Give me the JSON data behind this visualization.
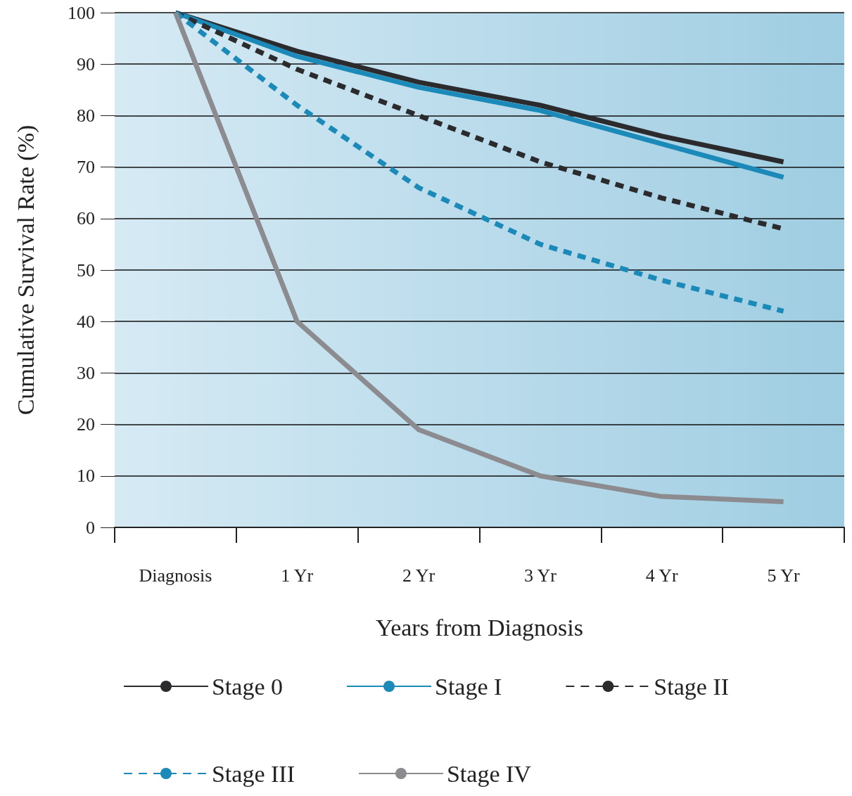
{
  "chart_data": {
    "type": "line",
    "xlabel": "Years from Diagnosis",
    "ylabel": "Cumulative Survival Rate (%)",
    "categories": [
      "Diagnosis",
      "1 Yr",
      "2 Yr",
      "3 Yr",
      "4 Yr",
      "5 Yr"
    ],
    "series": [
      {
        "name": "Stage 0",
        "color": "#2b2b2e",
        "line_style": "solid",
        "values": [
          100,
          92.5,
          86.5,
          82,
          76,
          71
        ]
      },
      {
        "name": "Stage I",
        "color": "#1b8ab8",
        "line_style": "solid",
        "values": [
          100,
          91.5,
          85.5,
          81,
          74.5,
          68
        ]
      },
      {
        "name": "Stage II",
        "color": "#2b2b2e",
        "line_style": "dashed",
        "values": [
          100,
          89,
          80,
          71,
          64,
          58
        ]
      },
      {
        "name": "Stage III",
        "color": "#1b8ab8",
        "line_style": "dashed",
        "values": [
          100,
          82,
          66,
          55,
          48,
          42
        ]
      },
      {
        "name": "Stage IV",
        "color": "#8c8c90",
        "line_style": "solid",
        "values": [
          100,
          40,
          19,
          10,
          6,
          5
        ]
      }
    ],
    "ylim": [
      0,
      100
    ],
    "yticks": [
      0,
      10,
      20,
      30,
      40,
      50,
      60,
      70,
      80,
      90,
      100
    ],
    "grid": "y",
    "legend": "bottom",
    "marker": "none"
  }
}
